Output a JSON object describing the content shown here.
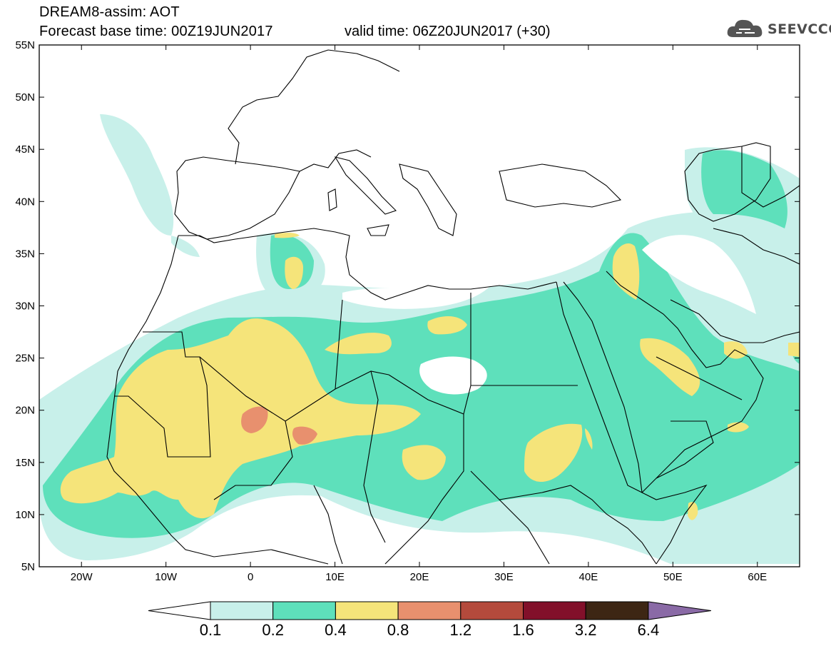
{
  "header": {
    "line1": "DREAM8-assim: AOT",
    "line2": "Forecast base time: 00Z19JUN2017",
    "valid": "valid time: 06Z20JUN2017 (+30)",
    "logo_text": "SEEVCCC",
    "logo_icon": "cloud-icon"
  },
  "map": {
    "lon_ticks": [
      "20W",
      "10W",
      "0",
      "10E",
      "20E",
      "30E",
      "40E",
      "50E",
      "60E"
    ],
    "lat_ticks": [
      "5N",
      "10N",
      "15N",
      "20N",
      "25N",
      "30N",
      "35N",
      "40N",
      "45N",
      "50N",
      "55N"
    ],
    "lon_range": [
      -25,
      65
    ],
    "lat_range": [
      5,
      55
    ]
  },
  "colorbar": {
    "labels": [
      "0.1",
      "0.2",
      "0.4",
      "0.8",
      "1.2",
      "1.6",
      "3.2",
      "6.4"
    ],
    "colors": [
      "#ffffff",
      "#c8f0ea",
      "#5ee0bb",
      "#f5e47a",
      "#e8906e",
      "#b44a3c",
      "#82102a",
      "#3d2614",
      "#8a6aa6"
    ]
  }
}
